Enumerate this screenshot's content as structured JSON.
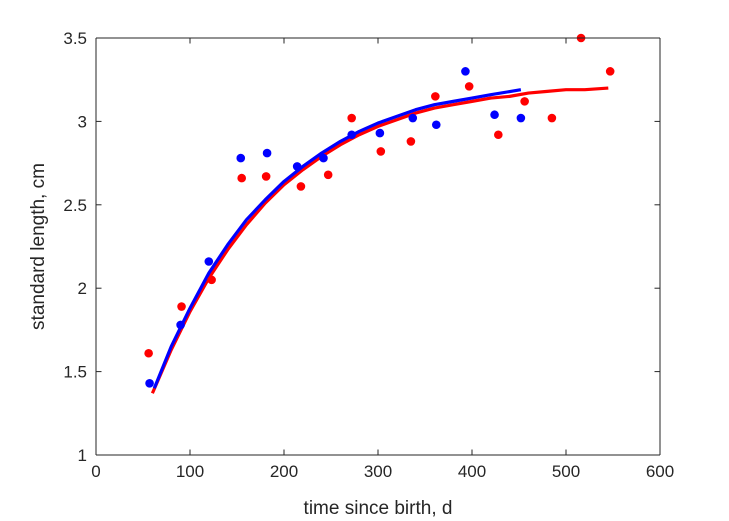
{
  "chart_data": {
    "type": "scatter",
    "title": "",
    "xlabel": "time since birth, d",
    "ylabel": "standard length, cm",
    "xlim": [
      0,
      600
    ],
    "ylim": [
      1,
      3.5
    ],
    "xticks": [
      "0",
      "100",
      "200",
      "300",
      "400",
      "500",
      "600"
    ],
    "yticks": [
      "1",
      "1.5",
      "2",
      "2.5",
      "3",
      "3.5"
    ],
    "grid": false,
    "legend": "none",
    "series": [
      {
        "name": "blue points",
        "kind": "scatter",
        "color": "#0000ff",
        "points": [
          [
            57,
            1.43
          ],
          [
            90,
            1.78
          ],
          [
            120,
            2.16
          ],
          [
            154,
            2.78
          ],
          [
            182,
            2.81
          ],
          [
            214,
            2.73
          ],
          [
            242,
            2.78
          ],
          [
            272,
            2.92
          ],
          [
            302,
            2.93
          ],
          [
            337,
            3.02
          ],
          [
            362,
            2.98
          ],
          [
            393,
            3.3
          ],
          [
            424,
            3.04
          ],
          [
            452,
            3.02
          ]
        ]
      },
      {
        "name": "red points",
        "kind": "scatter",
        "color": "#ff0000",
        "points": [
          [
            56,
            1.61
          ],
          [
            91,
            1.89
          ],
          [
            123,
            2.05
          ],
          [
            155,
            2.66
          ],
          [
            181,
            2.67
          ],
          [
            218,
            2.61
          ],
          [
            247,
            2.68
          ],
          [
            272,
            3.02
          ],
          [
            303,
            2.82
          ],
          [
            335,
            2.88
          ],
          [
            361,
            3.15
          ],
          [
            397,
            3.21
          ],
          [
            428,
            2.92
          ],
          [
            456,
            3.12
          ],
          [
            485,
            3.02
          ],
          [
            516,
            3.5
          ],
          [
            547,
            3.3
          ]
        ]
      },
      {
        "name": "red fit",
        "kind": "line",
        "color": "#ff0000",
        "points": [
          [
            60,
            1.37
          ],
          [
            80,
            1.63
          ],
          [
            100,
            1.86
          ],
          [
            120,
            2.06
          ],
          [
            140,
            2.23
          ],
          [
            160,
            2.38
          ],
          [
            180,
            2.51
          ],
          [
            200,
            2.62
          ],
          [
            220,
            2.71
          ],
          [
            240,
            2.79
          ],
          [
            260,
            2.86
          ],
          [
            280,
            2.92
          ],
          [
            300,
            2.97
          ],
          [
            320,
            3.01
          ],
          [
            340,
            3.05
          ],
          [
            360,
            3.08
          ],
          [
            380,
            3.1
          ],
          [
            400,
            3.12
          ],
          [
            420,
            3.14
          ],
          [
            440,
            3.15
          ],
          [
            460,
            3.17
          ],
          [
            480,
            3.18
          ],
          [
            500,
            3.19
          ],
          [
            520,
            3.19
          ],
          [
            545,
            3.2
          ]
        ]
      },
      {
        "name": "blue fit",
        "kind": "line",
        "color": "#0000ff",
        "points": [
          [
            62,
            1.4
          ],
          [
            80,
            1.65
          ],
          [
            100,
            1.88
          ],
          [
            120,
            2.09
          ],
          [
            140,
            2.26
          ],
          [
            160,
            2.41
          ],
          [
            180,
            2.53
          ],
          [
            200,
            2.64
          ],
          [
            220,
            2.73
          ],
          [
            240,
            2.81
          ],
          [
            260,
            2.88
          ],
          [
            280,
            2.94
          ],
          [
            300,
            2.99
          ],
          [
            320,
            3.03
          ],
          [
            340,
            3.07
          ],
          [
            360,
            3.1
          ],
          [
            380,
            3.12
          ],
          [
            400,
            3.14
          ],
          [
            420,
            3.16
          ],
          [
            452,
            3.19
          ]
        ]
      }
    ]
  }
}
